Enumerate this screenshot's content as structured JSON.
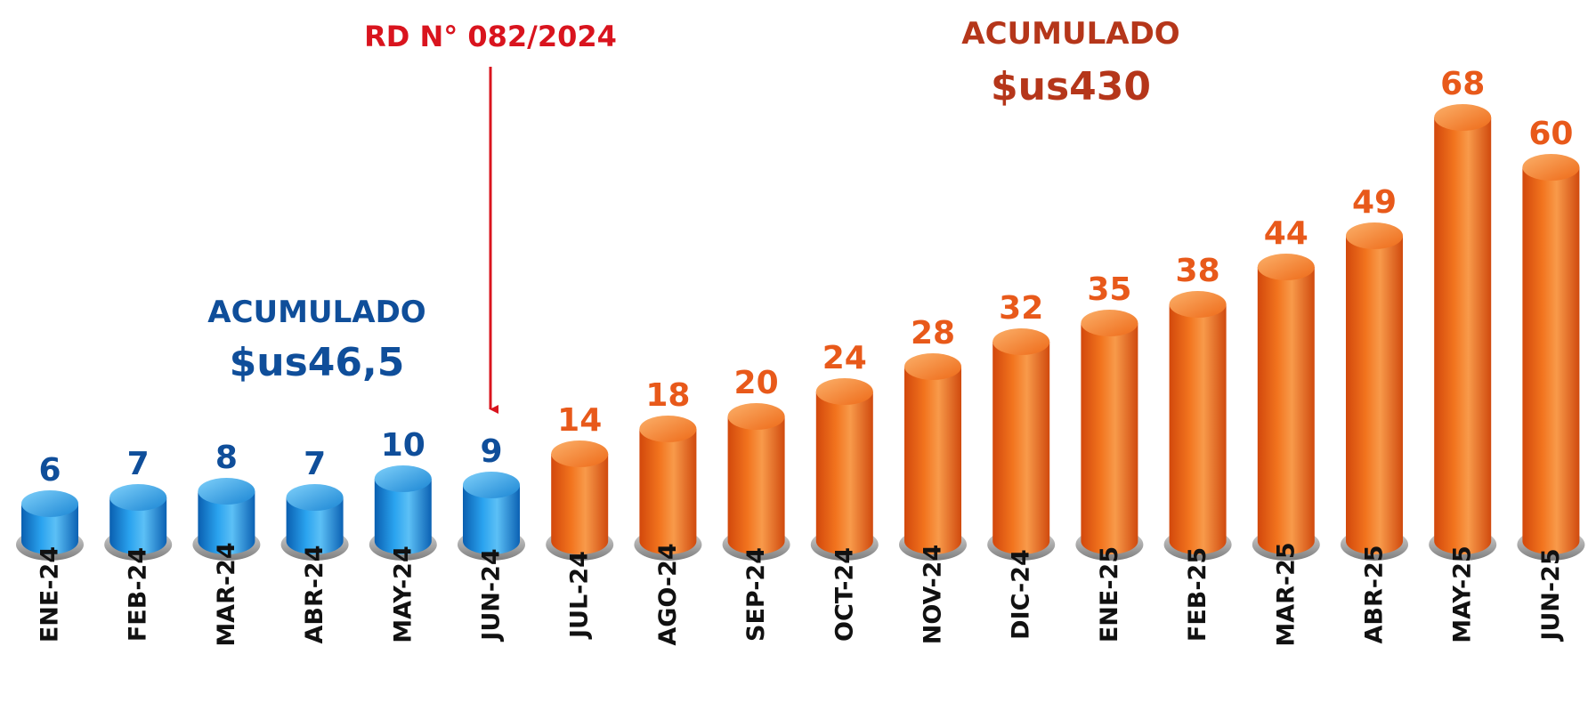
{
  "chart_data": {
    "type": "bar",
    "categories": [
      "ENE-24",
      "FEB-24",
      "MAR-24",
      "ABR-24",
      "MAY-24",
      "JUN-24",
      "JUL-24",
      "AGO-24",
      "SEP-24",
      "OCT-24",
      "NOV-24",
      "DIC-24",
      "ENE-25",
      "FEB-25",
      "MAR-25",
      "ABR-25",
      "MAY-25",
      "JUN-25"
    ],
    "values": [
      6,
      7,
      8,
      7,
      10,
      9,
      14,
      18,
      20,
      24,
      28,
      32,
      35,
      38,
      44,
      49,
      68,
      60
    ],
    "data_labels": [
      "6",
      "7",
      "8",
      "7",
      "10",
      "9",
      "14",
      "18",
      "20",
      "24",
      "28",
      "32",
      "35",
      "38",
      "44",
      "49",
      "68",
      "60"
    ],
    "title": "",
    "xlabel": "",
    "ylabel": "",
    "ylim": [
      0,
      75
    ],
    "grid": false,
    "groups": [
      {
        "from_index": 0,
        "to_index": 5,
        "color": "#1e8fd8",
        "label_color": "#0f4e9a"
      },
      {
        "from_index": 6,
        "to_index": 17,
        "color": "#f06a14",
        "label_color": "#e8591a"
      }
    ],
    "annotations": {
      "regulation": {
        "text": "RD N° 082/2024",
        "color": "#d9141e",
        "points_to": "JUN-24"
      },
      "blue_total": {
        "label": "ACUMULADO",
        "value": "$us46,5",
        "color": "#0f4e9a"
      },
      "orange_total": {
        "label": "ACUMULADO",
        "value": "$us430",
        "color": "#b5361a"
      }
    }
  }
}
